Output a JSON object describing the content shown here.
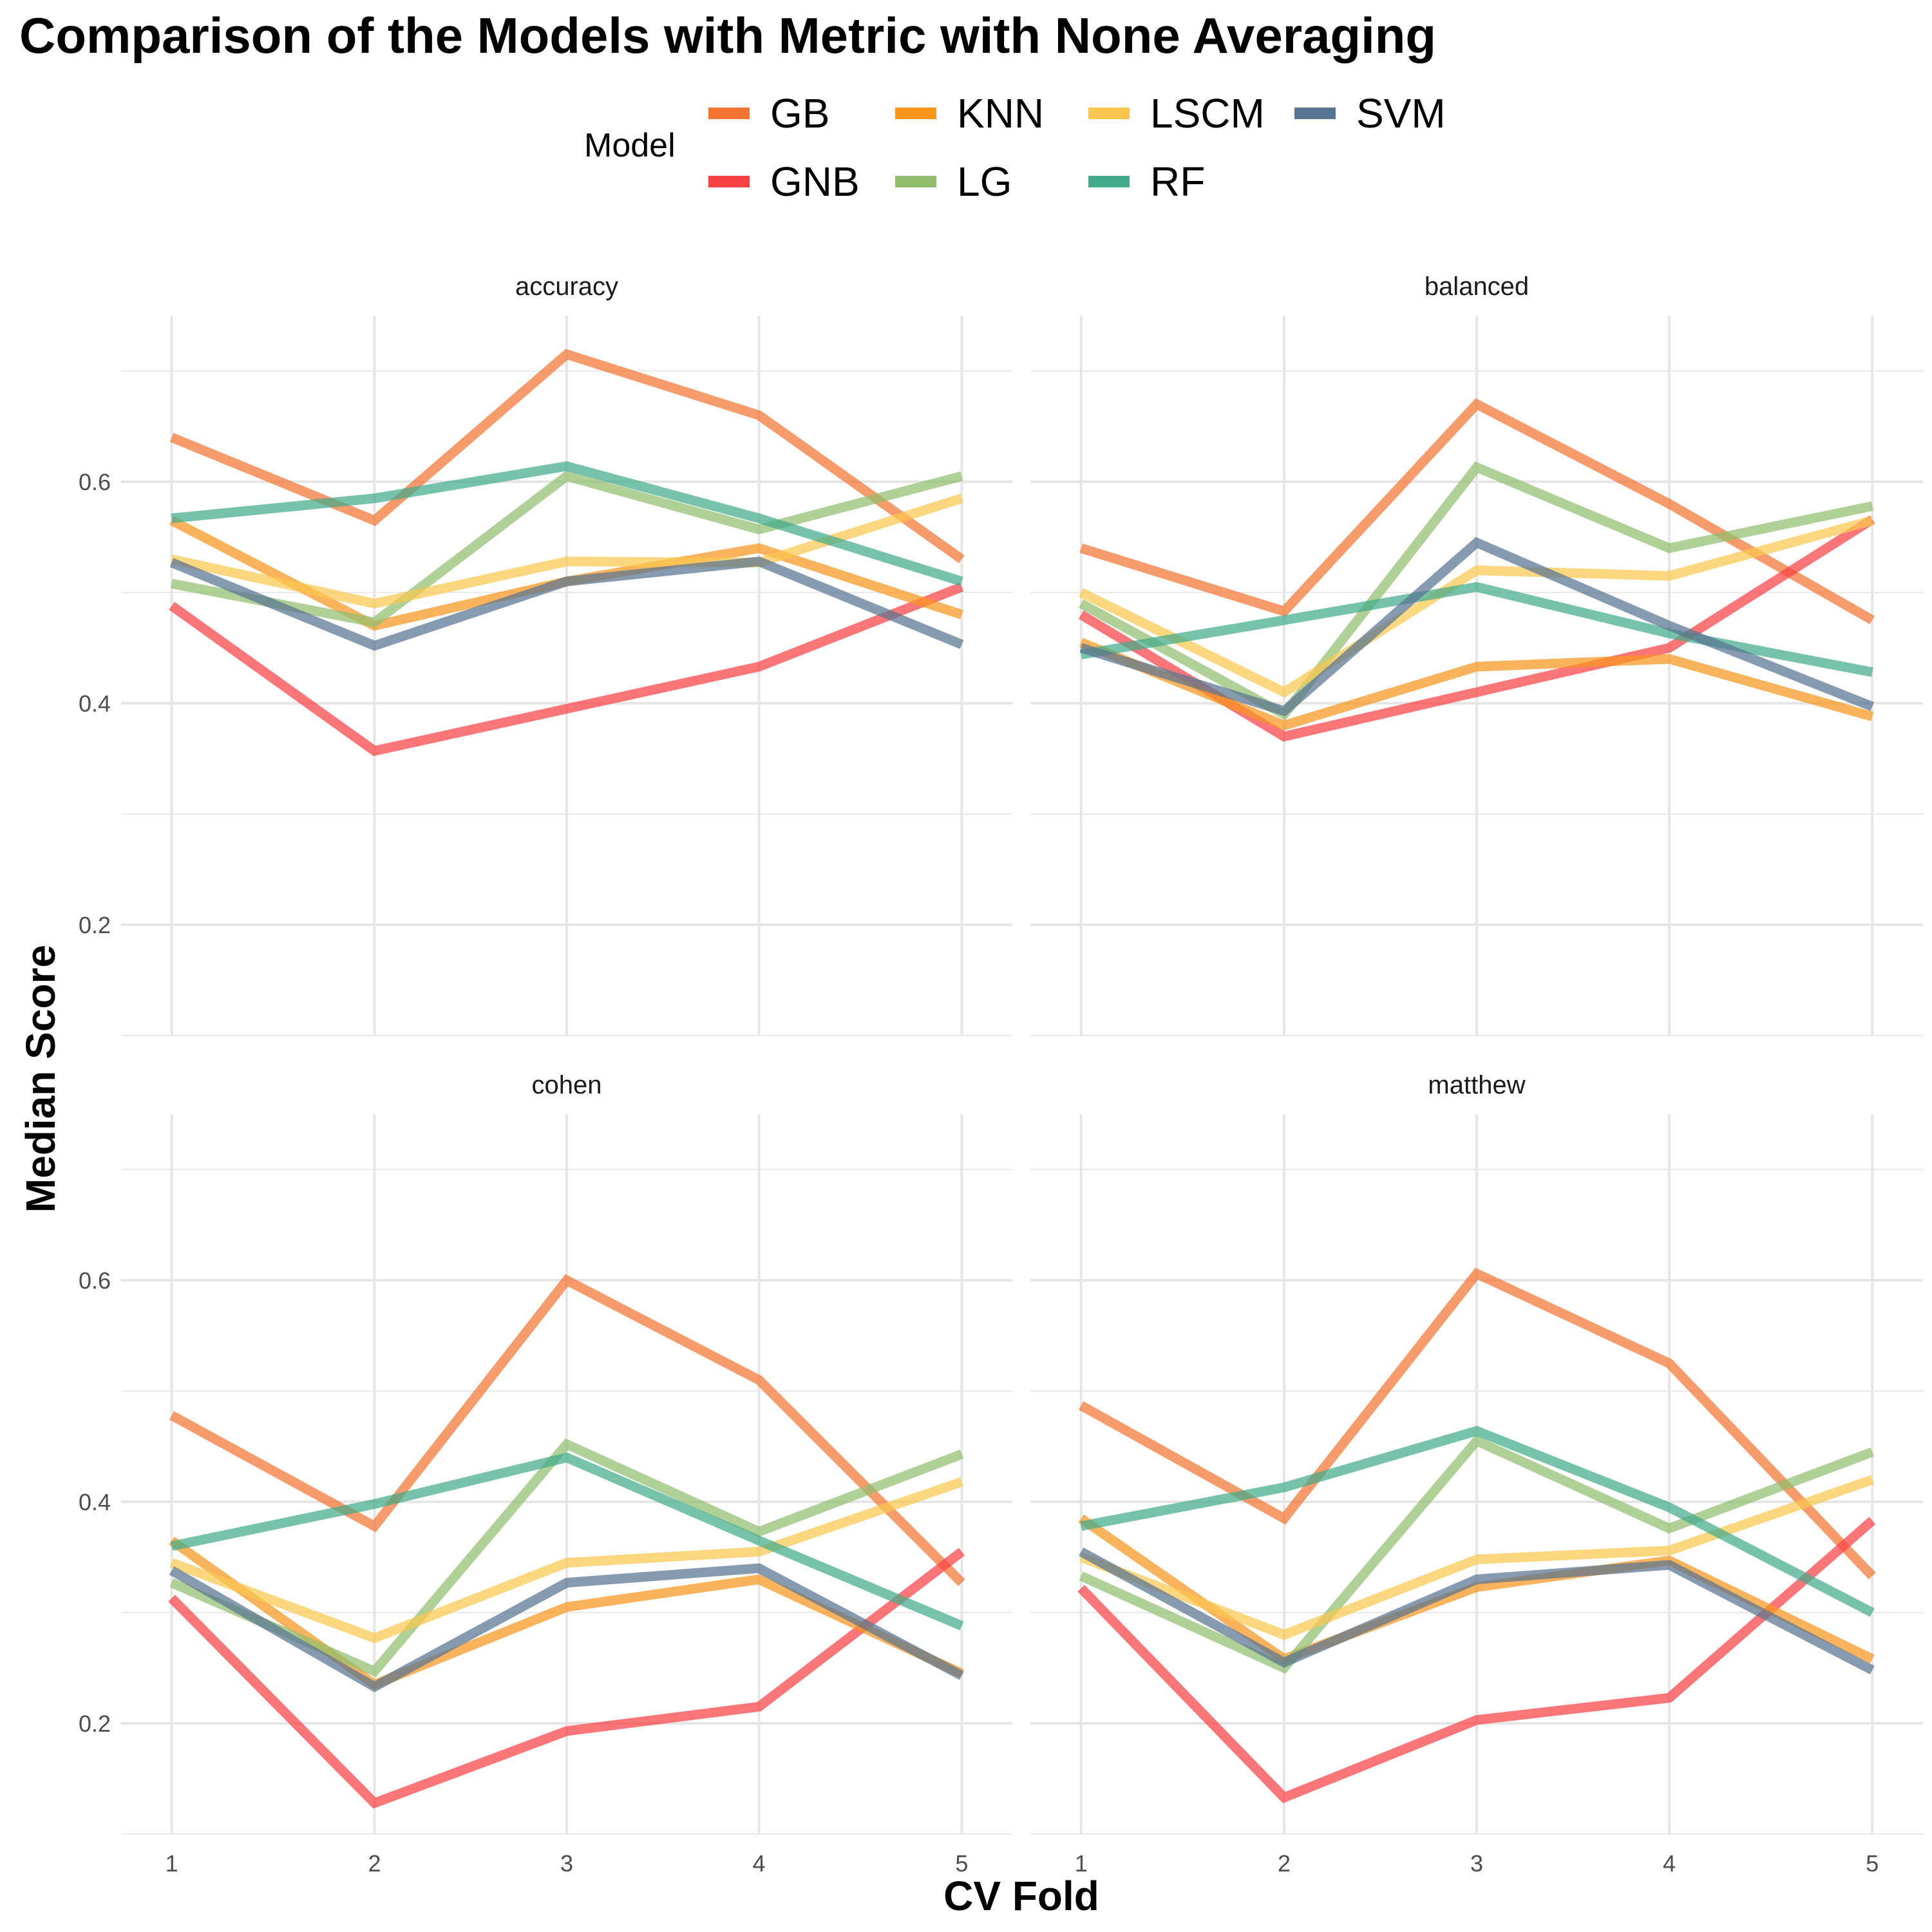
{
  "chart_data": {
    "type": "line",
    "title": "Comparison of the Models with Metric with None Averaging",
    "xlabel": "CV Fold",
    "ylabel": "Median Score",
    "legend_title": "Model",
    "legend_placement": "top",
    "grid": true,
    "x": [
      1,
      2,
      3,
      4,
      5
    ],
    "x_ticks": [
      "1",
      "2",
      "3",
      "4",
      "5"
    ],
    "y_ticks": [
      "0.2",
      "0.4",
      "0.6"
    ],
    "ylim": [
      0.1,
      0.75
    ],
    "colors": {
      "GB": "#F37432",
      "GNB": "#F94144",
      "KNN": "#F8961E",
      "LG": "#90BE6D",
      "LSCM": "#F9C74F",
      "RF": "#43AA8B",
      "SVM": "#577590"
    },
    "legend_order": [
      "GB",
      "GNB",
      "KNN",
      "LG",
      "LSCM",
      "RF",
      "SVM"
    ],
    "facets": [
      {
        "name": "accuracy",
        "series": [
          {
            "name": "GB",
            "values": [
              0.64,
              0.565,
              0.715,
              0.66,
              0.53
            ]
          },
          {
            "name": "GNB",
            "values": [
              0.488,
              0.357,
              0.395,
              0.433,
              0.505
            ]
          },
          {
            "name": "KNN",
            "values": [
              0.565,
              0.47,
              0.51,
              0.54,
              0.48
            ]
          },
          {
            "name": "LG",
            "values": [
              0.508,
              0.473,
              0.605,
              0.557,
              0.605
            ]
          },
          {
            "name": "LSCM",
            "values": [
              0.53,
              0.49,
              0.528,
              0.527,
              0.585
            ]
          },
          {
            "name": "RF",
            "values": [
              0.567,
              0.585,
              0.614,
              0.567,
              0.51
            ]
          },
          {
            "name": "SVM",
            "values": [
              0.527,
              0.452,
              0.51,
              0.528,
              0.453
            ]
          }
        ]
      },
      {
        "name": "balanced",
        "series": [
          {
            "name": "GB",
            "values": [
              0.54,
              0.483,
              0.67,
              0.58,
              0.475
            ]
          },
          {
            "name": "GNB",
            "values": [
              0.48,
              0.37,
              0.41,
              0.45,
              0.566
            ]
          },
          {
            "name": "KNN",
            "values": [
              0.455,
              0.38,
              0.433,
              0.44,
              0.388
            ]
          },
          {
            "name": "LG",
            "values": [
              0.49,
              0.39,
              0.613,
              0.54,
              0.578
            ]
          },
          {
            "name": "LSCM",
            "values": [
              0.5,
              0.41,
              0.52,
              0.515,
              0.565
            ]
          },
          {
            "name": "RF",
            "values": [
              0.444,
              0.475,
              0.505,
              0.463,
              0.428
            ]
          },
          {
            "name": "SVM",
            "values": [
              0.45,
              0.393,
              0.545,
              0.47,
              0.397
            ]
          }
        ]
      },
      {
        "name": "cohen",
        "series": [
          {
            "name": "GB",
            "values": [
              0.478,
              0.378,
              0.6,
              0.51,
              0.327
            ]
          },
          {
            "name": "GNB",
            "values": [
              0.313,
              0.128,
              0.193,
              0.215,
              0.355
            ]
          },
          {
            "name": "KNN",
            "values": [
              0.365,
              0.235,
              0.305,
              0.33,
              0.245
            ]
          },
          {
            "name": "LG",
            "values": [
              0.327,
              0.247,
              0.452,
              0.373,
              0.443
            ]
          },
          {
            "name": "LSCM",
            "values": [
              0.345,
              0.277,
              0.345,
              0.355,
              0.418
            ]
          },
          {
            "name": "RF",
            "values": [
              0.36,
              0.398,
              0.44,
              0.365,
              0.288
            ]
          },
          {
            "name": "SVM",
            "values": [
              0.338,
              0.233,
              0.327,
              0.34,
              0.243
            ]
          }
        ]
      },
      {
        "name": "matthew",
        "series": [
          {
            "name": "GB",
            "values": [
              0.487,
              0.385,
              0.606,
              0.525,
              0.333
            ]
          },
          {
            "name": "GNB",
            "values": [
              0.322,
              0.133,
              0.203,
              0.223,
              0.383
            ]
          },
          {
            "name": "KNN",
            "values": [
              0.385,
              0.258,
              0.323,
              0.347,
              0.258
            ]
          },
          {
            "name": "LG",
            "values": [
              0.333,
              0.25,
              0.455,
              0.376,
              0.445
            ]
          },
          {
            "name": "LSCM",
            "values": [
              0.35,
              0.28,
              0.348,
              0.356,
              0.42
            ]
          },
          {
            "name": "RF",
            "values": [
              0.378,
              0.413,
              0.464,
              0.395,
              0.3
            ]
          },
          {
            "name": "SVM",
            "values": [
              0.355,
              0.255,
              0.33,
              0.343,
              0.248
            ]
          }
        ]
      }
    ]
  }
}
